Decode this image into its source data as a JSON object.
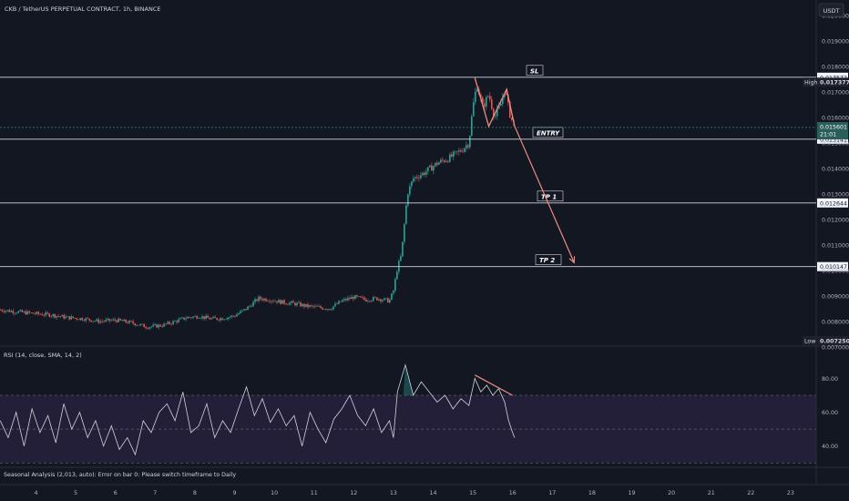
{
  "header": {
    "title": "CKB / TetherUS PERPETUAL CONTRACT, 1h, BINANCE",
    "currency": "USDT"
  },
  "rsi_panel": {
    "label": "RSI (14, close, SMA, 14, 2)"
  },
  "footer": {
    "message": "Seasonal Analysis (2,013, auto): Error on bar 0: Please switch timeframe to Daily"
  },
  "colors": {
    "background": "#131722",
    "bull": "#26a69a",
    "bear": "#ef5350",
    "level_line": "#d1d4dc",
    "rsi_line": "#d1d4dc",
    "rsi_band": "#241f39",
    "projection": "#f28b82"
  },
  "chart_data": [
    {
      "type": "candlestick",
      "title": "CKB / TetherUS PERPETUAL CONTRACT, 1h, BINANCE",
      "x_ticks": [
        "4",
        "5",
        "6",
        "7",
        "8",
        "9",
        "10",
        "11",
        "12",
        "13",
        "14",
        "15",
        "16",
        "17",
        "18",
        "19",
        "20",
        "21",
        "22",
        "23"
      ],
      "x_tick_days": [
        4,
        5,
        6,
        7,
        8,
        9,
        10,
        11,
        12,
        13,
        14,
        15,
        16,
        17,
        18,
        19,
        20,
        21,
        22,
        23
      ],
      "y_ticks": [
        "0.020000",
        "0.019000",
        "0.017000",
        "0.016000",
        "0.014000",
        "0.013000",
        "0.012000",
        "0.011000",
        "0.009000",
        "0.008000"
      ],
      "y_tick_values": [
        0.02,
        0.019,
        0.017,
        0.016,
        0.014,
        0.013,
        0.012,
        0.011,
        0.009,
        0.008
      ],
      "ylim": [
        0.0071,
        0.0206
      ],
      "price_path": [
        [
          3.1,
          0.00845
        ],
        [
          3.5,
          0.00838
        ],
        [
          4.0,
          0.0083
        ],
        [
          4.4,
          0.00825
        ],
        [
          4.8,
          0.00815
        ],
        [
          5.2,
          0.0081
        ],
        [
          5.6,
          0.008
        ],
        [
          6.0,
          0.00805
        ],
        [
          6.4,
          0.00795
        ],
        [
          6.8,
          0.00778
        ],
        [
          7.2,
          0.00785
        ],
        [
          7.5,
          0.008
        ],
        [
          7.8,
          0.00815
        ],
        [
          8.1,
          0.0082
        ],
        [
          8.4,
          0.0081
        ],
        [
          8.7,
          0.00812
        ],
        [
          9.0,
          0.00822
        ],
        [
          9.3,
          0.0085
        ],
        [
          9.6,
          0.0089
        ],
        [
          9.9,
          0.00885
        ],
        [
          10.2,
          0.00875
        ],
        [
          10.5,
          0.0087
        ],
        [
          10.8,
          0.0086
        ],
        [
          11.1,
          0.00855
        ],
        [
          11.4,
          0.0085
        ],
        [
          11.7,
          0.0088
        ],
        [
          12.0,
          0.00895
        ],
        [
          12.3,
          0.00885
        ],
        [
          12.6,
          0.0089
        ],
        [
          12.9,
          0.0088
        ],
        [
          13.0,
          0.0092
        ],
        [
          13.1,
          0.0101
        ],
        [
          13.2,
          0.0106
        ],
        [
          13.35,
          0.013
        ],
        [
          13.5,
          0.0136
        ],
        [
          13.8,
          0.01385
        ],
        [
          14.1,
          0.0142
        ],
        [
          14.4,
          0.0144
        ],
        [
          14.7,
          0.0147
        ],
        [
          14.9,
          0.015
        ],
        [
          15.0,
          0.0164
        ],
        [
          15.1,
          0.0173
        ],
        [
          15.25,
          0.0164
        ],
        [
          15.4,
          0.0169
        ],
        [
          15.55,
          0.016
        ],
        [
          15.7,
          0.0165
        ],
        [
          15.8,
          0.0171
        ],
        [
          15.95,
          0.016
        ],
        [
          16.05,
          0.01566
        ]
      ],
      "levels": [
        {
          "label": "SL",
          "value": 0.017572,
          "price_label": "0.017572"
        },
        {
          "label": "ENTRY",
          "value": 0.015141,
          "price_label": "0.015141"
        },
        {
          "label": "TP 1",
          "value": 0.012644,
          "price_label": "0.012644"
        },
        {
          "label": "TP 2",
          "value": 0.010147,
          "price_label": "0.010147"
        }
      ],
      "markers": [
        {
          "label": "High",
          "value": 0.017377,
          "price_label": "0.017377"
        },
        {
          "label": "Low",
          "value": 0.00725,
          "price_label": "0.007250"
        }
      ],
      "current_price": {
        "value": 0.015601,
        "price_label": "0.015601",
        "countdown": "21:01"
      },
      "pattern_path": [
        [
          15.05,
          0.01755
        ],
        [
          15.4,
          0.01565
        ],
        [
          15.85,
          0.0171
        ],
        [
          16.05,
          0.01566
        ]
      ],
      "projection": [
        [
          16.05,
          0.01566
        ],
        [
          17.55,
          0.0103
        ]
      ],
      "overlapped_ticks": [
        {
          "label": "0.018000",
          "value": 0.018
        },
        {
          "label": "0.015000",
          "value": 0.015
        },
        {
          "label": "0.010000",
          "value": 0.01
        },
        {
          "label": "0.007000",
          "value": 0.007
        }
      ]
    },
    {
      "type": "line",
      "title": "RSI (14, close, SMA, 14, 2)",
      "y_ticks": [
        "80.00",
        "60.00",
        "40.00"
      ],
      "y_tick_values": [
        80,
        60,
        40
      ],
      "ylim": [
        28,
        98
      ],
      "band": [
        30,
        70
      ],
      "midline": 50,
      "values": [
        [
          3.1,
          55
        ],
        [
          3.3,
          45
        ],
        [
          3.5,
          60
        ],
        [
          3.7,
          40
        ],
        [
          3.9,
          62
        ],
        [
          4.1,
          48
        ],
        [
          4.3,
          58
        ],
        [
          4.5,
          42
        ],
        [
          4.7,
          65
        ],
        [
          4.9,
          50
        ],
        [
          5.1,
          60
        ],
        [
          5.3,
          45
        ],
        [
          5.5,
          55
        ],
        [
          5.7,
          40
        ],
        [
          5.9,
          52
        ],
        [
          6.1,
          38
        ],
        [
          6.3,
          45
        ],
        [
          6.5,
          35
        ],
        [
          6.7,
          55
        ],
        [
          6.9,
          48
        ],
        [
          7.1,
          60
        ],
        [
          7.3,
          65
        ],
        [
          7.5,
          55
        ],
        [
          7.7,
          72
        ],
        [
          7.9,
          48
        ],
        [
          8.1,
          52
        ],
        [
          8.3,
          65
        ],
        [
          8.5,
          45
        ],
        [
          8.7,
          55
        ],
        [
          8.9,
          48
        ],
        [
          9.1,
          62
        ],
        [
          9.3,
          75
        ],
        [
          9.5,
          58
        ],
        [
          9.7,
          68
        ],
        [
          9.9,
          54
        ],
        [
          10.1,
          62
        ],
        [
          10.3,
          52
        ],
        [
          10.5,
          58
        ],
        [
          10.7,
          40
        ],
        [
          10.9,
          60
        ],
        [
          11.1,
          50
        ],
        [
          11.3,
          42
        ],
        [
          11.5,
          56
        ],
        [
          11.7,
          62
        ],
        [
          11.9,
          70
        ],
        [
          12.1,
          58
        ],
        [
          12.3,
          52
        ],
        [
          12.5,
          62
        ],
        [
          12.7,
          48
        ],
        [
          12.9,
          55
        ],
        [
          13.0,
          45
        ],
        [
          13.1,
          72
        ],
        [
          13.3,
          88
        ],
        [
          13.5,
          70
        ],
        [
          13.7,
          78
        ],
        [
          13.9,
          72
        ],
        [
          14.1,
          66
        ],
        [
          14.3,
          70
        ],
        [
          14.5,
          62
        ],
        [
          14.7,
          68
        ],
        [
          14.9,
          64
        ],
        [
          15.05,
          80
        ],
        [
          15.2,
          72
        ],
        [
          15.35,
          76
        ],
        [
          15.5,
          70
        ],
        [
          15.65,
          74
        ],
        [
          15.8,
          66
        ],
        [
          15.9,
          55
        ],
        [
          16.0,
          48
        ],
        [
          16.05,
          45
        ]
      ],
      "divergence_line": [
        [
          15.05,
          82
        ],
        [
          16.0,
          70
        ]
      ]
    }
  ]
}
